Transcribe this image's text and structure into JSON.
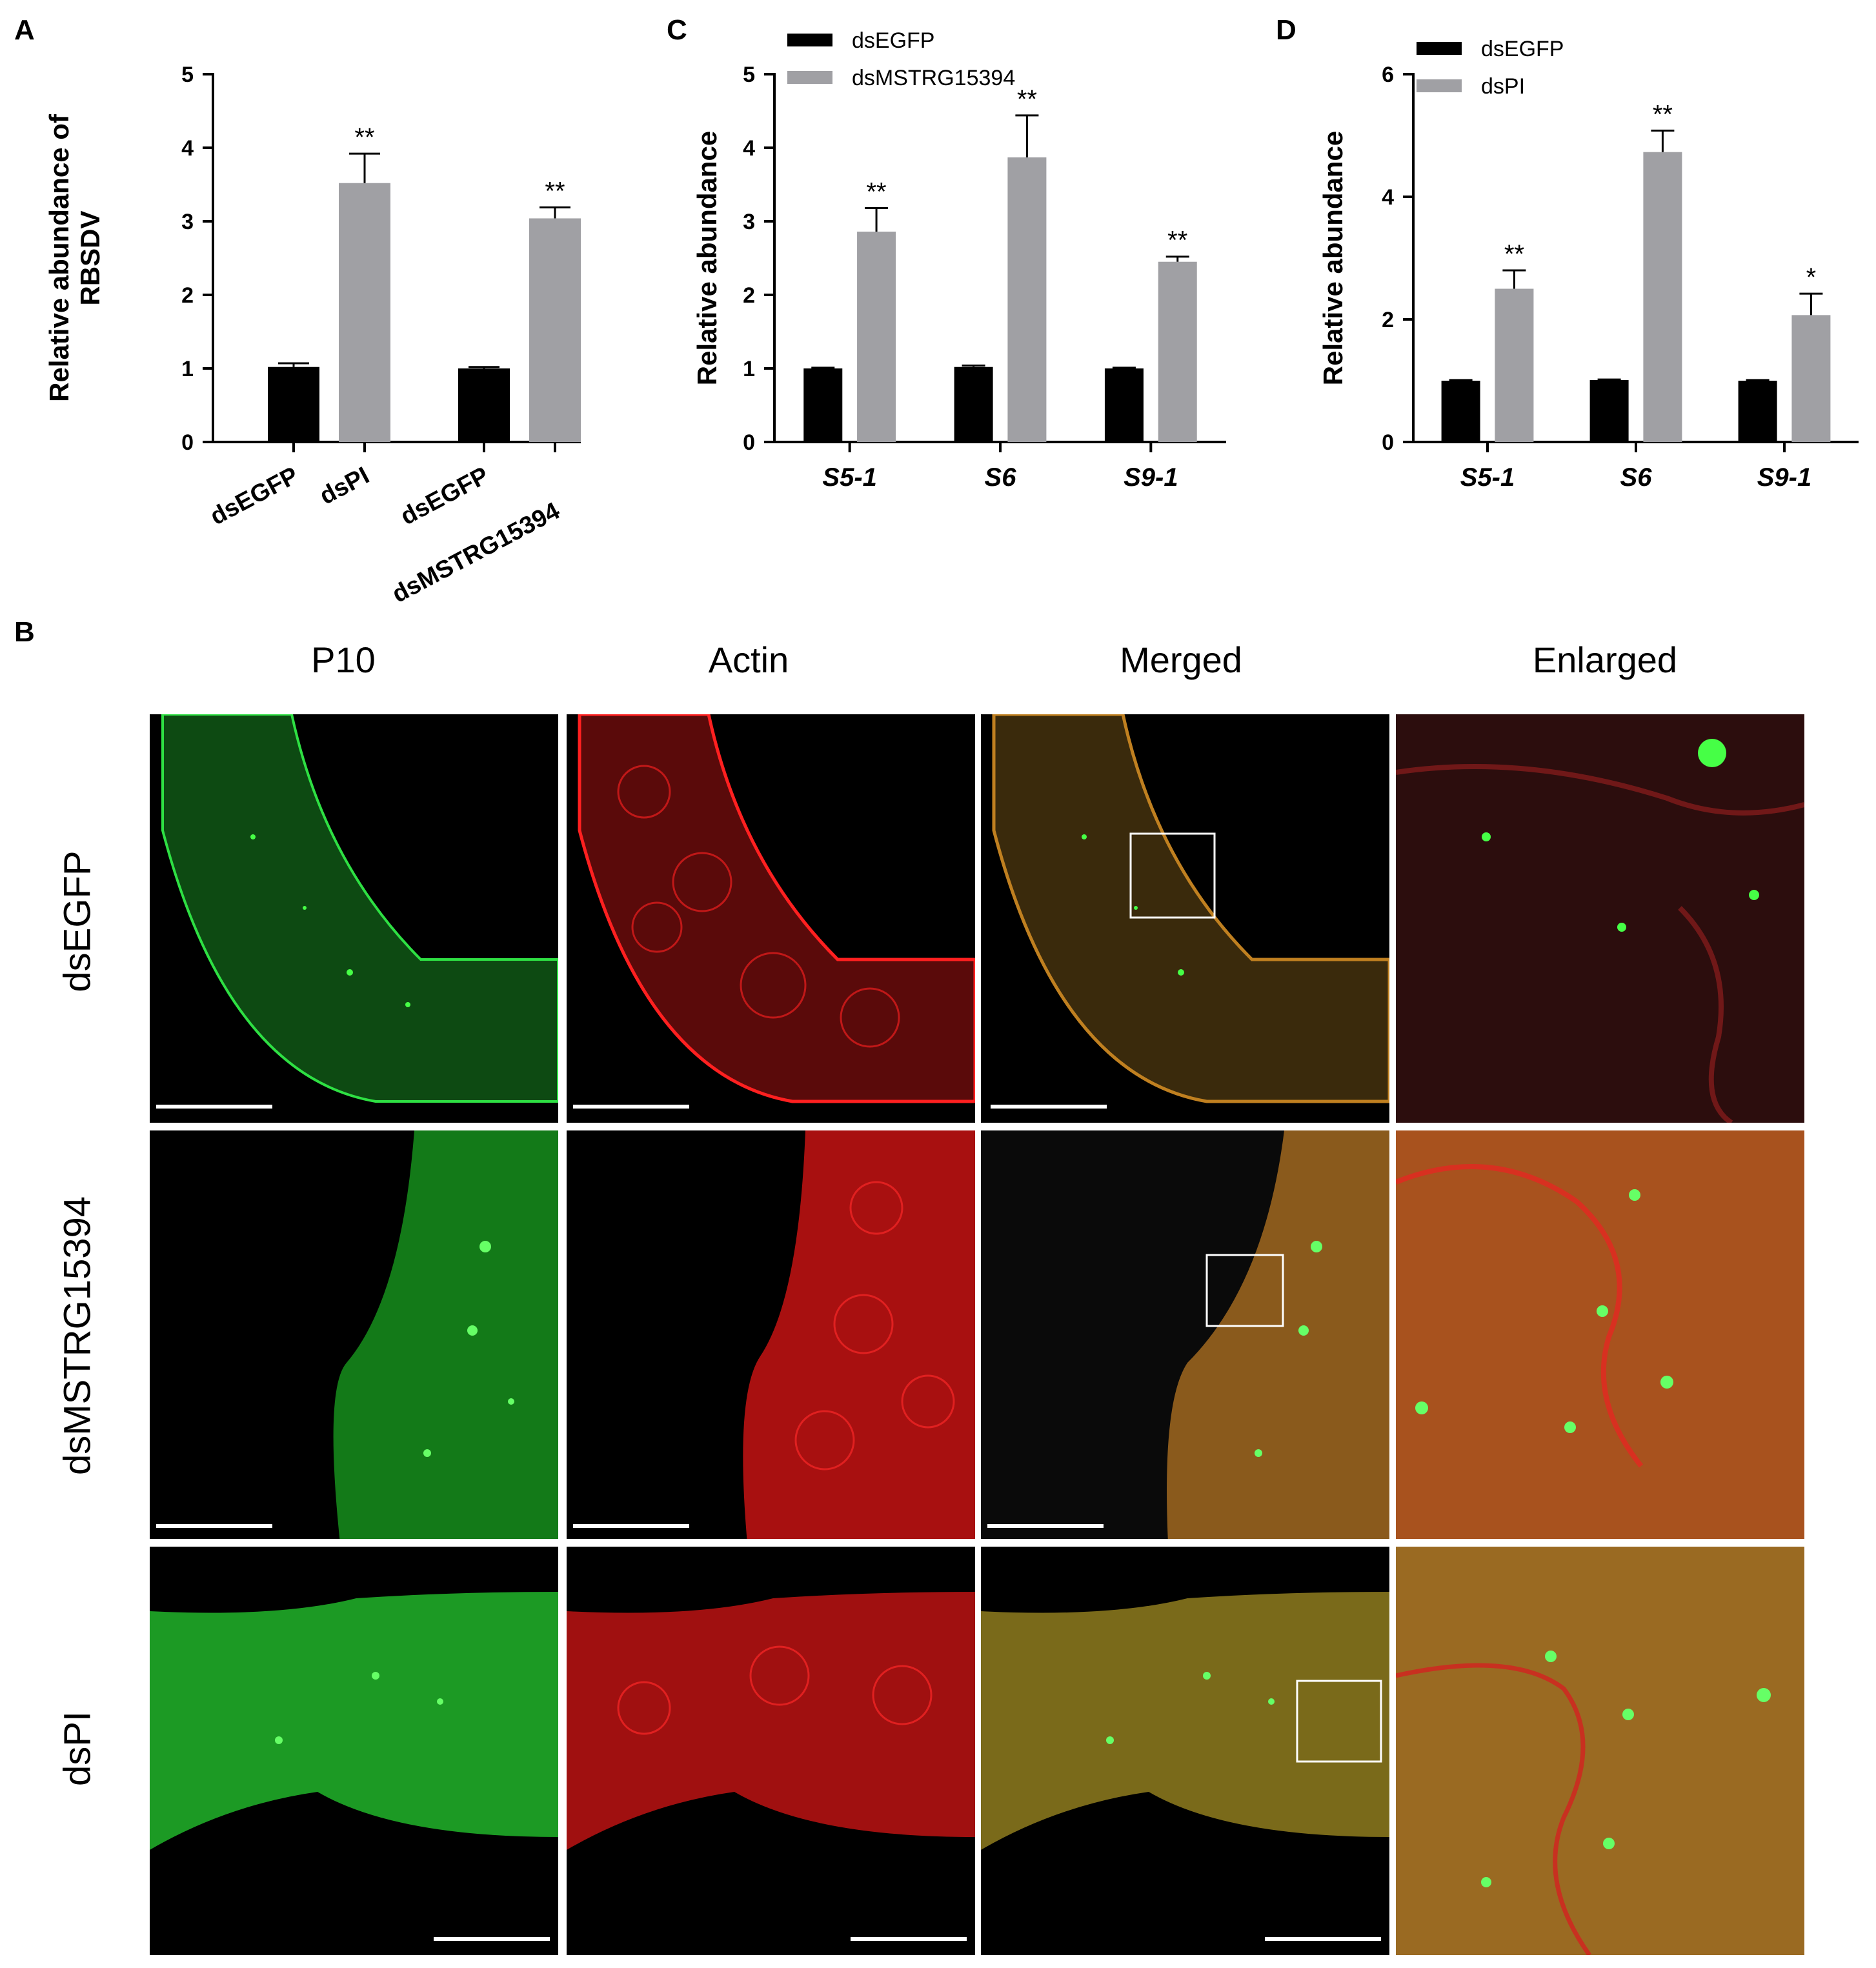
{
  "panel_labels": {
    "a": "A",
    "b": "B",
    "c": "C",
    "d": "D"
  },
  "chart_data": [
    {
      "id": "A",
      "type": "bar",
      "ylabel": [
        "Relative abundance of",
        "RBSDV"
      ],
      "ylim": [
        0,
        5
      ],
      "yticks": [
        "0",
        "1",
        "2",
        "3",
        "4",
        "5"
      ],
      "categories": [
        "dsEGFP",
        "dsPI",
        "dsEGFP",
        "dsMSTRG15394"
      ],
      "values": [
        1.02,
        3.52,
        1.0,
        3.04
      ],
      "errors": [
        0.05,
        0.4,
        0.02,
        0.15
      ],
      "colors": [
        "#000000",
        "#a0a0a4",
        "#000000",
        "#a0a0a4"
      ],
      "significance": [
        "",
        "**",
        "",
        "**"
      ]
    },
    {
      "id": "C",
      "type": "bar",
      "ylabel": [
        "Relative abundance"
      ],
      "ylim": [
        0,
        5
      ],
      "yticks": [
        "0",
        "1",
        "2",
        "3",
        "4",
        "5"
      ],
      "categories": [
        "S5-1",
        "S6",
        "S9-1"
      ],
      "series": [
        {
          "name": "dsEGFP",
          "color": "#000000",
          "values": [
            1.0,
            1.02,
            1.0
          ],
          "errors": [
            0.01,
            0.02,
            0.01
          ],
          "significance": [
            "",
            "",
            ""
          ]
        },
        {
          "name": "dsMSTRG15394",
          "color": "#a0a0a4",
          "values": [
            2.86,
            3.87,
            2.45
          ],
          "errors": [
            0.32,
            0.57,
            0.07
          ],
          "significance": [
            "**",
            "**",
            "**"
          ]
        }
      ]
    },
    {
      "id": "D",
      "type": "bar",
      "ylabel": [
        "Relative abundance"
      ],
      "ylim": [
        0,
        6
      ],
      "yticks": [
        "0",
        "2",
        "4",
        "6"
      ],
      "categories": [
        "S5-1",
        "S6",
        "S9-1"
      ],
      "series": [
        {
          "name": "dsEGFP",
          "color": "#000000",
          "values": [
            1.0,
            1.01,
            1.0
          ],
          "errors": [
            0.01,
            0.01,
            0.01
          ],
          "significance": [
            "",
            "",
            ""
          ]
        },
        {
          "name": "dsPI",
          "color": "#a0a0a4",
          "values": [
            2.5,
            4.73,
            2.07
          ],
          "errors": [
            0.3,
            0.35,
            0.35
          ],
          "significance": [
            "**",
            "**",
            "*"
          ]
        }
      ]
    }
  ],
  "micrographs": {
    "columns": [
      "P10",
      "Actin",
      "Merged",
      "Enlarged"
    ],
    "rows": [
      "dsEGFP",
      "dsMSTRG15394",
      "dsPI"
    ]
  }
}
